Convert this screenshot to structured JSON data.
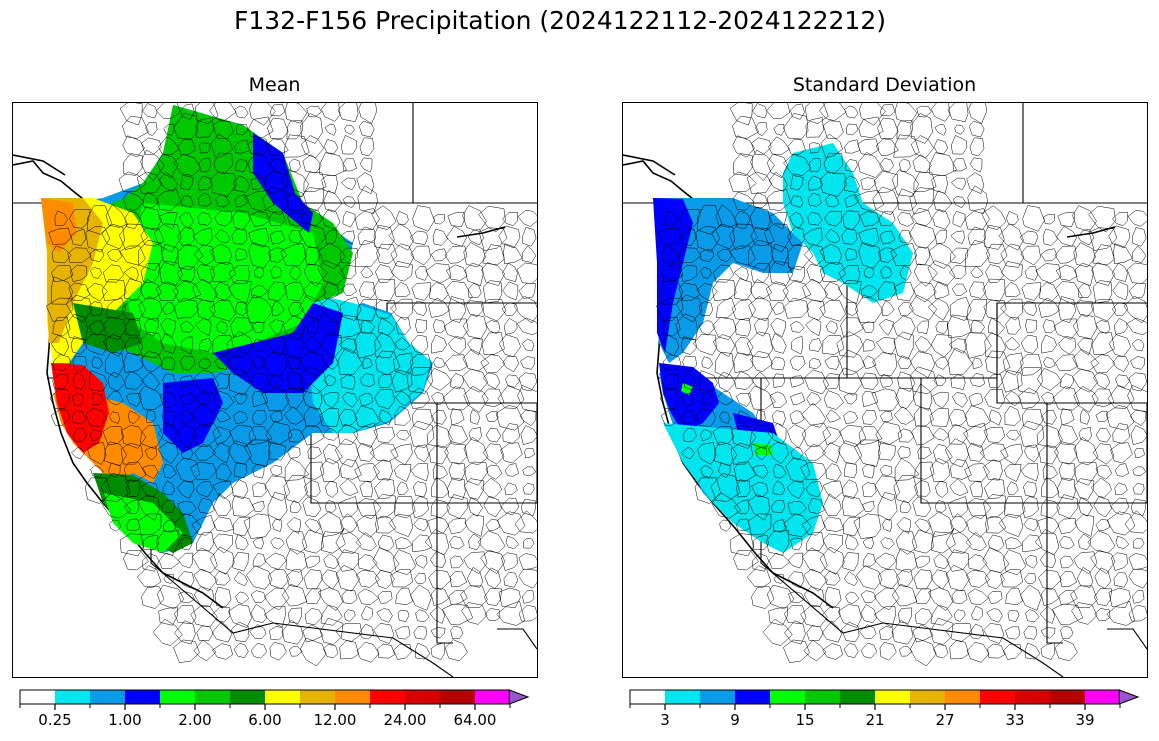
{
  "figure": {
    "title": "F132-F156 Precipitation (2024122112-2024122212)"
  },
  "panels": [
    {
      "id": "mean",
      "title": "Mean",
      "colorbar": {
        "colors": [
          "#ffffff",
          "#00e5ee",
          "#0a9be8",
          "#0000ff",
          "#00ff00",
          "#00c800",
          "#008c00",
          "#ffff00",
          "#e6b400",
          "#ff8c00",
          "#ff0000",
          "#d70000",
          "#b40000",
          "#ff00ff",
          "#9955cc"
        ],
        "ticks": [
          "0.25",
          "1.00",
          "2.00",
          "6.00",
          "12.00",
          "24.00",
          "64.00"
        ],
        "extend": "max"
      }
    },
    {
      "id": "stddev",
      "title": "Standard Deviation",
      "colorbar": {
        "colors": [
          "#ffffff",
          "#00e5ee",
          "#0a9be8",
          "#0000ff",
          "#00ff00",
          "#00c800",
          "#008c00",
          "#ffff00",
          "#e6b400",
          "#ff8c00",
          "#ff0000",
          "#d70000",
          "#b40000",
          "#ff00ff",
          "#9955cc"
        ],
        "ticks": [
          "3",
          "9",
          "15",
          "21",
          "27",
          "33",
          "39"
        ],
        "extend": "max"
      }
    }
  ]
}
